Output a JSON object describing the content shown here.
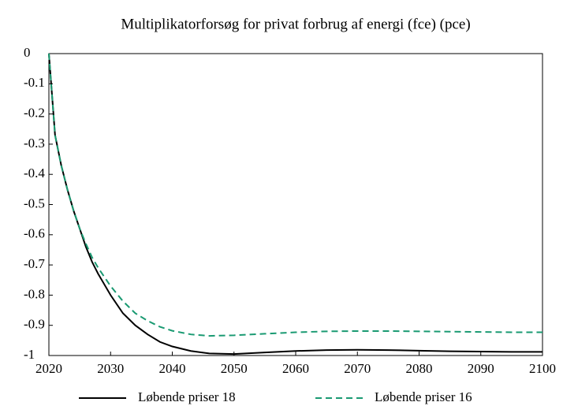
{
  "chart_data": {
    "type": "line",
    "title": "Multiplikatorforsøg for privat forbrug af energi (fce) (pce)",
    "x": [
      2020,
      2021,
      2022,
      2023,
      2024,
      2025,
      2026,
      2027,
      2028,
      2030,
      2032,
      2034,
      2036,
      2038,
      2040,
      2043,
      2046,
      2050,
      2055,
      2060,
      2065,
      2070,
      2075,
      2080,
      2085,
      2090,
      2095,
      2100
    ],
    "series": [
      {
        "name": "Løbende priser 18",
        "color": "#000000",
        "dash": "solid",
        "values": [
          0,
          -0.27,
          -0.37,
          -0.45,
          -0.52,
          -0.58,
          -0.64,
          -0.69,
          -0.73,
          -0.8,
          -0.86,
          -0.9,
          -0.93,
          -0.955,
          -0.97,
          -0.985,
          -0.993,
          -0.995,
          -0.99,
          -0.985,
          -0.982,
          -0.981,
          -0.982,
          -0.984,
          -0.986,
          -0.987,
          -0.988,
          -0.988
        ]
      },
      {
        "name": "Løbende priser 16",
        "color": "#1a9a72",
        "dash": "dashed",
        "values": [
          0,
          -0.27,
          -0.37,
          -0.45,
          -0.52,
          -0.58,
          -0.63,
          -0.675,
          -0.71,
          -0.77,
          -0.82,
          -0.86,
          -0.885,
          -0.905,
          -0.918,
          -0.93,
          -0.935,
          -0.933,
          -0.928,
          -0.923,
          -0.92,
          -0.919,
          -0.919,
          -0.92,
          -0.921,
          -0.922,
          -0.923,
          -0.923
        ]
      }
    ],
    "xlim": [
      2020,
      2100
    ],
    "xticks": [
      2020,
      2030,
      2040,
      2050,
      2060,
      2070,
      2080,
      2090,
      2100
    ],
    "ylim": [
      -1,
      0
    ],
    "yticks": [
      0,
      -0.1,
      -0.2,
      -0.3,
      -0.4,
      -0.5,
      -0.6,
      -0.7,
      -0.8,
      -0.9,
      -1
    ],
    "legend": "bottom"
  }
}
